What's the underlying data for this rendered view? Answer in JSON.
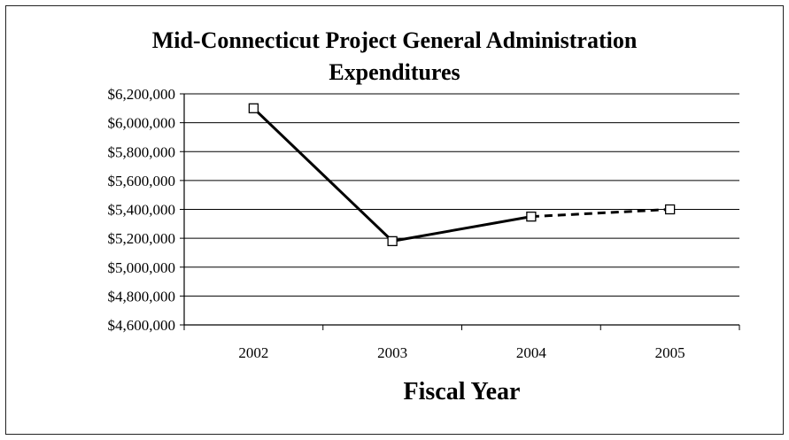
{
  "chart_data": {
    "type": "line",
    "title_lines": [
      "Mid-Connecticut Project General Administration",
      "Expenditures"
    ],
    "xlabel": "Fiscal Year",
    "ylabel": "",
    "categories": [
      "2002",
      "2003",
      "2004",
      "2005"
    ],
    "ylim": [
      4600000,
      6200000
    ],
    "ytick_step": 200000,
    "yticks": [
      "$6,200,000",
      "$6,000,000",
      "$5,800,000",
      "$5,600,000",
      "$5,400,000",
      "$5,200,000",
      "$5,000,000",
      "$4,800,000",
      "$4,600,000"
    ],
    "series": [
      {
        "values": [
          6100000,
          5180000,
          5350000,
          5400000
        ],
        "line_style_segments": [
          "solid",
          "solid",
          "dashed"
        ],
        "marker": "open-square"
      }
    ],
    "grid": true,
    "line_color": "#000000"
  }
}
